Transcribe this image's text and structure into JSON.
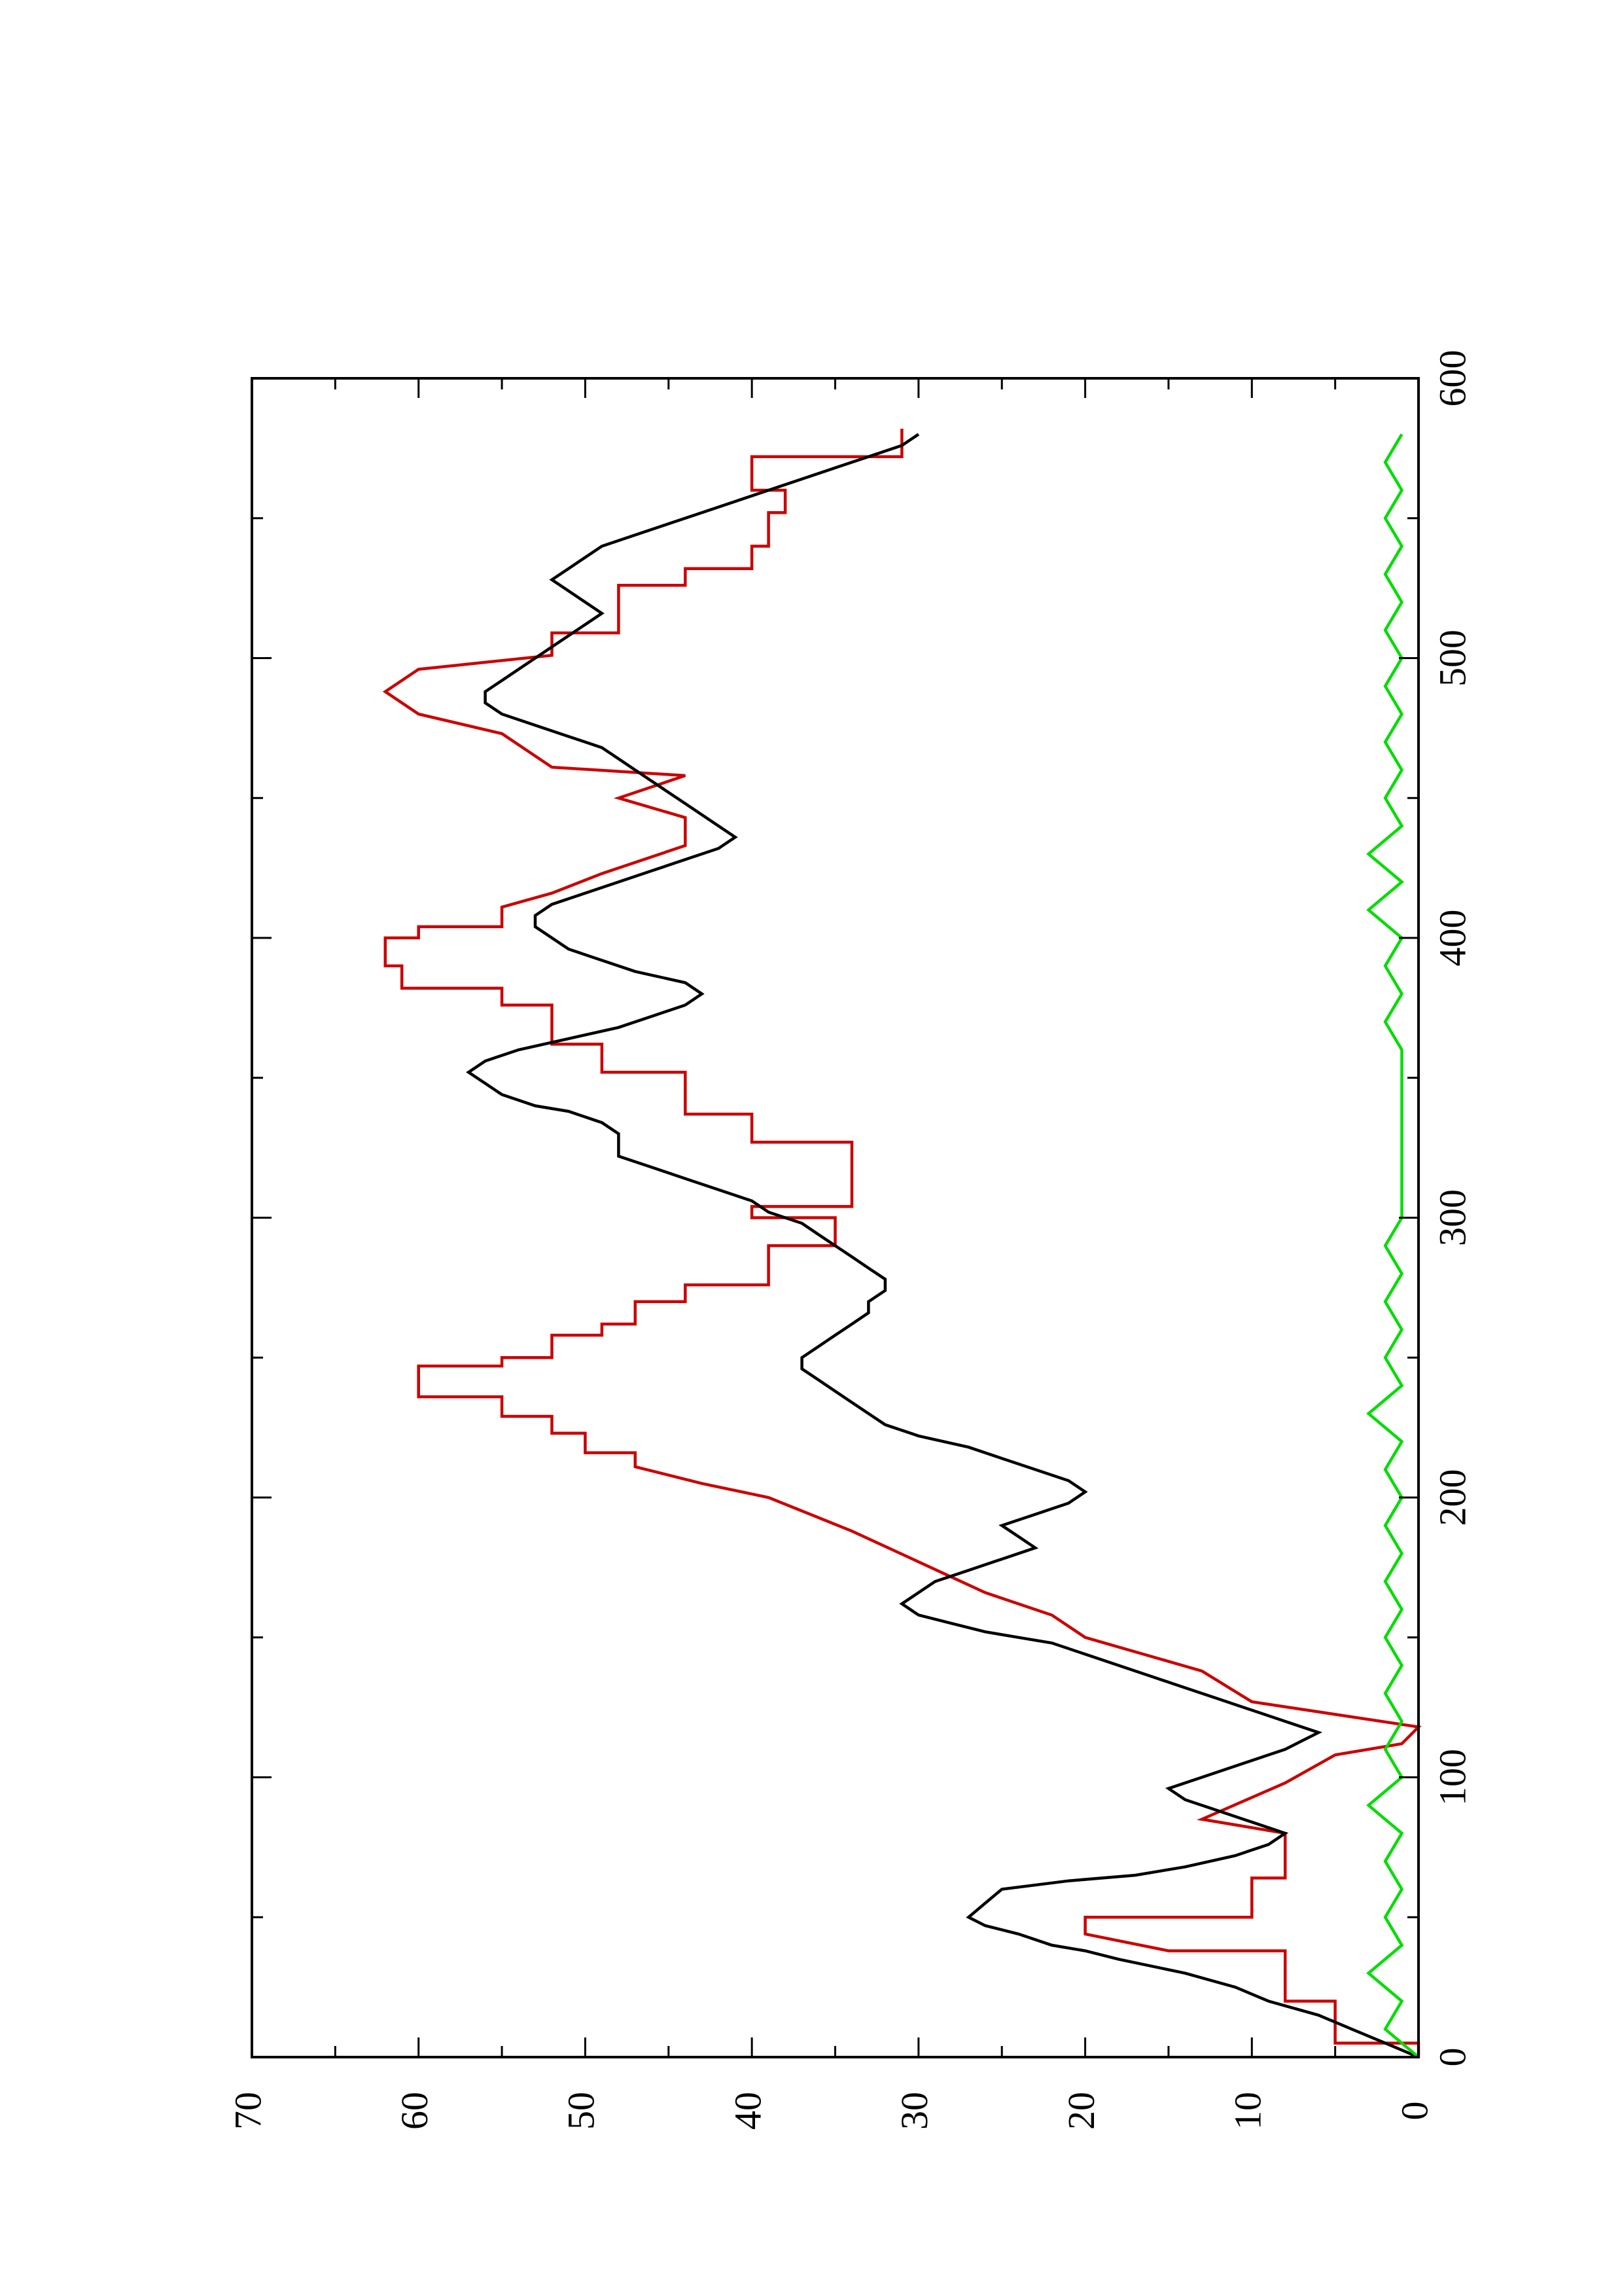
{
  "chart_data": {
    "type": "line",
    "orientation": "rotated-90-ccw",
    "title": "",
    "xlabel": "",
    "ylabel": "",
    "xlim": [
      0,
      600
    ],
    "ylim": [
      0,
      70
    ],
    "x_ticks": [
      "0",
      "100",
      "200",
      "300",
      "400",
      "500",
      "600"
    ],
    "y_ticks": [
      "0",
      "10",
      "20",
      "30",
      "40",
      "50",
      "60",
      "70"
    ],
    "grid": false,
    "legend": "none",
    "series": [
      {
        "color": "#cc0000",
        "x": [
          0,
          5,
          5,
          20,
          20,
          38,
          38,
          44,
          50,
          50,
          64,
          64,
          80,
          80,
          85,
          85,
          98,
          98,
          108,
          108,
          112,
          118,
          118,
          127,
          127,
          138,
          138,
          150,
          150,
          158,
          158,
          166,
          166,
          177,
          177,
          188,
          188,
          200,
          200,
          205,
          205,
          211,
          216,
          216,
          223,
          223,
          229,
          229,
          236,
          236,
          247,
          247,
          250,
          250,
          258,
          258,
          262,
          262,
          270,
          270,
          276,
          276,
          290,
          290,
          300,
          300,
          304,
          304,
          317,
          317,
          327,
          327,
          337,
          337,
          342,
          342,
          352,
          352,
          362,
          362,
          376,
          376,
          382,
          382,
          390,
          390,
          400,
          400,
          404,
          404,
          411,
          416,
          416,
          423,
          423,
          433,
          433,
          443,
          443,
          450,
          450,
          458,
          458,
          461,
          461,
          473,
          473,
          480,
          480,
          488,
          488,
          496,
          496,
          501,
          509,
          509,
          526,
          526,
          532,
          532,
          540,
          540,
          552,
          552,
          560,
          560,
          572,
          572,
          582
        ],
        "y": [
          0,
          0,
          5,
          5,
          8,
          8,
          15,
          20,
          20,
          10,
          10,
          8,
          8,
          8,
          13,
          13,
          8,
          8,
          5,
          5,
          1,
          0,
          0,
          10,
          10,
          13,
          13,
          20,
          20,
          22,
          22,
          26,
          26,
          30,
          30,
          34,
          34,
          39,
          39,
          43,
          43,
          47,
          47,
          50,
          50,
          52,
          52,
          55,
          55,
          60,
          60,
          55,
          55,
          52,
          52,
          49,
          49,
          47,
          47,
          44,
          44,
          39,
          39,
          35,
          35,
          40,
          40,
          34,
          34,
          34,
          34,
          40,
          40,
          44,
          44,
          44,
          44,
          49,
          49,
          52,
          52,
          55,
          55,
          61,
          61,
          62,
          62,
          60,
          60,
          55,
          55,
          52,
          52,
          49,
          49,
          44,
          44,
          44,
          44,
          48,
          48,
          44,
          44,
          52,
          52,
          55,
          55,
          60,
          60,
          62,
          62,
          60,
          60,
          52,
          52,
          48,
          48,
          44,
          44,
          40,
          40,
          39,
          39,
          38,
          38,
          40,
          40,
          31,
          31
        ]
      },
      {
        "color": "#000000",
        "x": [
          0,
          5,
          10,
          15,
          20,
          25,
          30,
          35,
          38,
          40,
          44,
          47,
          50,
          55,
          60,
          63,
          65,
          68,
          72,
          76,
          80,
          84,
          88,
          92,
          96,
          100,
          104,
          108,
          110,
          113,
          116,
          120,
          124,
          128,
          132,
          136,
          140,
          144,
          148,
          150,
          152,
          155,
          158,
          162,
          166,
          170,
          174,
          178,
          182,
          186,
          190,
          194,
          198,
          202,
          206,
          210,
          212,
          214,
          218,
          222,
          226,
          230,
          234,
          238,
          242,
          246,
          250,
          254,
          258,
          262,
          266,
          270,
          274,
          278,
          282,
          286,
          290,
          294,
          298,
          302,
          306,
          310,
          314,
          318,
          320,
          322,
          326,
          330,
          334,
          338,
          340,
          344,
          348,
          352,
          356,
          360,
          364,
          368,
          372,
          376,
          380,
          384,
          388,
          392,
          396,
          400,
          404,
          408,
          412,
          416,
          420,
          424,
          428,
          432,
          436,
          440,
          444,
          448,
          452,
          456,
          460,
          464,
          468,
          472,
          476,
          480,
          484,
          488,
          492,
          496,
          500,
          504,
          508,
          512,
          516,
          520,
          524,
          528,
          532,
          536,
          540,
          544,
          548,
          552,
          556,
          560,
          564,
          568,
          572,
          576,
          580
        ],
        "y": [
          0,
          2,
          4,
          6,
          9,
          11,
          14,
          18,
          20,
          22,
          24,
          26,
          27,
          26,
          25,
          21,
          17,
          14,
          11,
          9,
          8,
          10,
          12,
          14,
          15,
          13,
          11,
          9,
          8,
          7,
          6,
          8,
          10,
          12,
          14,
          16,
          18,
          20,
          22,
          24,
          26,
          28,
          30,
          31,
          30,
          29,
          27,
          25,
          23,
          24,
          25,
          23,
          21,
          20,
          21,
          23,
          24,
          25,
          27,
          30,
          32,
          33,
          34,
          35,
          36,
          37,
          37,
          36,
          35,
          34,
          33,
          33,
          32,
          32,
          33,
          34,
          35,
          36,
          37,
          39,
          40,
          42,
          44,
          46,
          47,
          48,
          48,
          48,
          49,
          51,
          53,
          55,
          56,
          57,
          56,
          54,
          51,
          48,
          46,
          44,
          43,
          44,
          47,
          49,
          51,
          52,
          53,
          53,
          52,
          50,
          48,
          46,
          44,
          42,
          41,
          42,
          43,
          44,
          45,
          46,
          47,
          48,
          49,
          51,
          53,
          55,
          56,
          56,
          55,
          54,
          53,
          52,
          51,
          50,
          49,
          50,
          51,
          52,
          51,
          50,
          49,
          47,
          45,
          43,
          41,
          39,
          37,
          35,
          33,
          31,
          30
        ]
      },
      {
        "color": "#00dd00",
        "x": [
          0,
          10,
          20,
          30,
          40,
          50,
          60,
          70,
          80,
          90,
          100,
          110,
          120,
          130,
          140,
          150,
          160,
          170,
          180,
          190,
          200,
          210,
          220,
          230,
          240,
          250,
          260,
          270,
          280,
          290,
          300,
          310,
          320,
          330,
          340,
          350,
          360,
          370,
          380,
          390,
          400,
          410,
          420,
          430,
          440,
          450,
          460,
          470,
          480,
          490,
          500,
          510,
          520,
          530,
          540,
          550,
          560,
          570,
          580
        ],
        "y": [
          0,
          2,
          1,
          3,
          1,
          2,
          1,
          2,
          1,
          3,
          1,
          2,
          1,
          2,
          1,
          2,
          1,
          2,
          1,
          2,
          1,
          2,
          1,
          3,
          1,
          2,
          1,
          2,
          1,
          2,
          1,
          1,
          1,
          1,
          1,
          1,
          1,
          2,
          1,
          2,
          1,
          3,
          1,
          3,
          1,
          2,
          1,
          2,
          1,
          2,
          1,
          2,
          1,
          2,
          1,
          2,
          1,
          2,
          1
        ]
      }
    ]
  }
}
